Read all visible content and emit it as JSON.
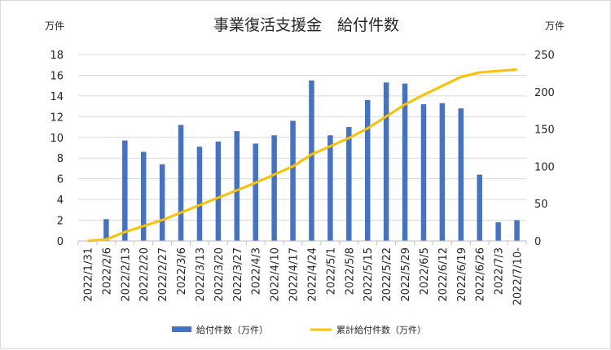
{
  "chart_data": {
    "type": "bar+line",
    "title": "事業復活支援金　給付件数",
    "y_left_unit": "万件",
    "y_right_unit": "万件",
    "y_left_lim": [
      0,
      18
    ],
    "y_left_ticks": [
      "0",
      "2",
      "4",
      "6",
      "8",
      "10",
      "12",
      "14",
      "16",
      "18"
    ],
    "y_right_lim": [
      0,
      250
    ],
    "y_right_ticks": [
      "0",
      "50",
      "100",
      "150",
      "200",
      "250"
    ],
    "categories": [
      "2022/1/31",
      "2022/2/6",
      "2022/2/13",
      "2022/2/20",
      "2022/2/27",
      "2022/3/6",
      "2022/3/13",
      "2022/3/20",
      "2022/3/27",
      "2022/4/3",
      "2022/4/10",
      "2022/4/17",
      "2022/4/24",
      "2022/5/1",
      "2022/5/8",
      "2022/5/15",
      "2022/5/22",
      "2022/5/29",
      "2022/6/5",
      "2022/6/12",
      "2022/6/19",
      "2022/6/26",
      "2022/7/3",
      "2022/7/10-"
    ],
    "series": [
      {
        "name": "給付件数（万件）",
        "type": "bar",
        "axis": "left",
        "color": "#4472c4",
        "values": [
          0,
          2.1,
          9.7,
          8.6,
          7.4,
          11.2,
          9.1,
          9.6,
          10.6,
          9.4,
          10.2,
          11.6,
          15.5,
          10.2,
          11.0,
          13.6,
          15.3,
          15.2,
          13.2,
          13.3,
          12.8,
          6.4,
          1.8,
          2.0
        ]
      },
      {
        "name": "累計給付件数（万件）",
        "type": "line",
        "axis": "right",
        "color": "#ffc000",
        "values": [
          0,
          2,
          12,
          20,
          28,
          38,
          48,
          58,
          68,
          78,
          89,
          100,
          116,
          127,
          138,
          151,
          167,
          183,
          196,
          208,
          220,
          226,
          228,
          230
        ]
      }
    ],
    "grid": true,
    "legend": "bottom"
  }
}
